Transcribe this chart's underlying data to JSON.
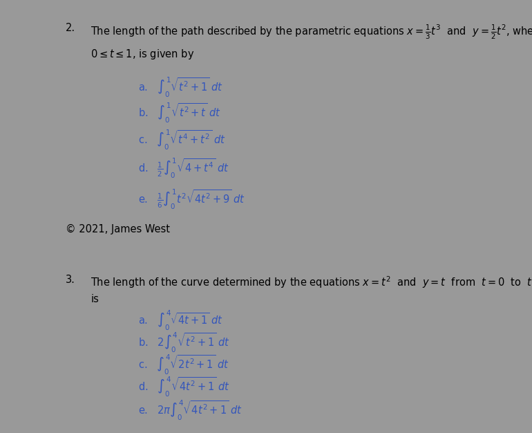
{
  "bg_color": "#ffffff",
  "gray_color": "#999999",
  "text_color": "#000000",
  "math_color": "#3355bb",
  "copyright": "© 2021, James West",
  "figsize": [
    7.7,
    6.26
  ],
  "dpi": 100
}
